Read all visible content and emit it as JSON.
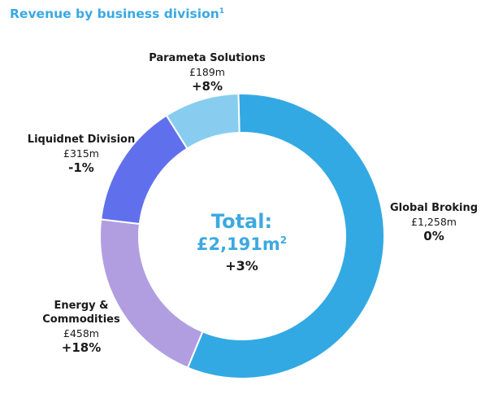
{
  "title": "Revenue by business division",
  "title_footnote": "1",
  "center": {
    "label": "Total:",
    "value": "£2,191m",
    "footnote": "2",
    "change": "+3%"
  },
  "chart_data": {
    "type": "pie",
    "title": "Revenue by business division",
    "unit": "£m",
    "categories": [
      "Global Broking",
      "Energy & Commodities",
      "Liquidnet Division",
      "Parameta Solutions"
    ],
    "values": [
      1258,
      458,
      315,
      189
    ],
    "value_labels": [
      "£1,258m",
      "£458m",
      "£315m",
      "£189m"
    ],
    "changes": [
      "0%",
      "+18%",
      "-1%",
      "+8%"
    ],
    "colors": [
      "#33a9e3",
      "#b19ee1",
      "#6070ec",
      "#88cdf0"
    ],
    "total": "£2,191m",
    "total_change": "+3%"
  }
}
